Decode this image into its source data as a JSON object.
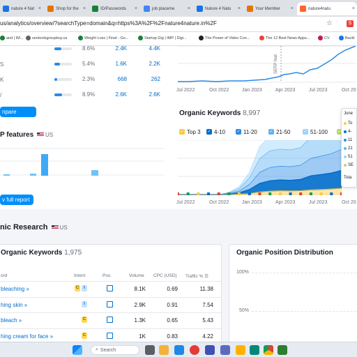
{
  "browser": {
    "tabs": [
      {
        "label": "nature 4 Nat",
        "color": "#1a73e8"
      },
      {
        "label": "Shop for the",
        "color": "#e37400"
      },
      {
        "label": "ID/Passwords",
        "color": "#188038"
      },
      {
        "label": "job placeme",
        "color": "#4285f4"
      },
      {
        "label": "Nature 4 Natu",
        "color": "#1a73e8"
      },
      {
        "label": "Your Member",
        "color": "#e37400"
      },
      {
        "label": "nature4natu",
        "color": "#ff642d"
      }
    ],
    "url": "us/analytics/overview/?searchType=domain&q=https%3A%2F%2Fnature4nature.in%2F",
    "bookmarks": [
      {
        "label": "and | IM...",
        "color": "#188038"
      },
      {
        "label": "seotoolsgroupbuy.us",
        "color": "#5f6368"
      },
      {
        "label": "Weight Loss | Final - Go...",
        "color": "#188038"
      },
      {
        "label": "Startup Gig | IMP | Digi...",
        "color": "#188038"
      },
      {
        "label": "The Power of Video Con...",
        "color": "#202124"
      },
      {
        "label": "The 12 Best News Apps...",
        "color": "#e8453c"
      },
      {
        "label": "CV",
        "color": "#c2185b"
      },
      {
        "label": "Backl",
        "color": "#1a73e8"
      }
    ]
  },
  "kw_rows": [
    {
      "a": "",
      "pct": "8.6%",
      "kw": "2.4K",
      "traffic": "4.4K",
      "fill": 0.4
    },
    {
      "a": "S",
      "pct": "5.4%",
      "kw": "1.6K",
      "traffic": "2.2K",
      "fill": 0.3
    },
    {
      "a": "K",
      "pct": "2.3%",
      "kw": "668",
      "traffic": "262",
      "fill": 0.15
    },
    {
      "a": "/",
      "pct": "8.9%",
      "kw": "2.6K",
      "traffic": "2.6K",
      "fill": 0.45
    }
  ],
  "compare_label": "npare",
  "serp": {
    "title": "P features",
    "country": "US",
    "icons": [
      "☆",
      "⊂⊃",
      "★",
      "▣",
      "◉",
      "◉",
      "⊡",
      "▷",
      "◉",
      "⌂",
      "🎓",
      "▤",
      "✕"
    ],
    "report_label": "v full report"
  },
  "traffic_chart": {
    "annotation": "SERP feat",
    "ticks": [
      "Jul 2022",
      "Oct 2022",
      "Jan 2023",
      "Apr 2023",
      "Jul 2023",
      "Oct 20"
    ]
  },
  "organic_kw": {
    "title": "Organic Keywords",
    "count": "8,997",
    "legend": [
      {
        "label": "Top 3",
        "color": "#ffc93c"
      },
      {
        "label": "4-10",
        "color": "#006dca"
      },
      {
        "label": "11-20",
        "color": "#2b8ae6"
      },
      {
        "label": "21-50",
        "color": "#5cb3f5"
      },
      {
        "label": "51-100",
        "color": "#9bd4fb"
      },
      {
        "label": "SE",
        "color": "#b6d96a"
      }
    ],
    "ticks": [
      "Jul 2022",
      "Oct 2022",
      "Jan 2023",
      "Apr 2023",
      "Jul 2023",
      "Oct 20"
    ]
  },
  "chart_data": {
    "type": "area",
    "title": "Organic Keywords",
    "x": [
      "Jun 2022",
      "Jul 2022",
      "Aug 2022",
      "Sep 2022",
      "Oct 2022",
      "Nov 2022",
      "Dec 2022",
      "Jan 2023",
      "Feb 2023",
      "Mar 2023",
      "Apr 2023",
      "May 2023",
      "Jun 2023",
      "Jul 2023",
      "Aug 2023",
      "Sep 2023",
      "Oct 2023"
    ],
    "series": [
      {
        "name": "Top 3",
        "values": [
          0,
          0,
          0,
          0,
          0,
          10,
          40,
          120,
          300,
          380,
          420,
          410,
          430,
          520,
          560,
          620,
          700
        ]
      },
      {
        "name": "4-10",
        "values": [
          0,
          0,
          0,
          0,
          0,
          40,
          150,
          420,
          900,
          1100,
          1150,
          1120,
          1200,
          1500,
          1600,
          1700,
          1900
        ]
      },
      {
        "name": "11-20",
        "values": [
          0,
          0,
          0,
          0,
          0,
          60,
          200,
          560,
          1200,
          1450,
          1500,
          1480,
          1550,
          1900,
          2000,
          2100,
          2300
        ]
      },
      {
        "name": "21-50",
        "values": [
          0,
          0,
          0,
          0,
          0,
          80,
          260,
          700,
          1500,
          1800,
          1850,
          1820,
          1900,
          2300,
          2450,
          2600,
          2900
        ]
      },
      {
        "name": "51-100",
        "values": [
          0,
          0,
          0,
          0,
          0,
          60,
          220,
          600,
          1300,
          1550,
          1600,
          1580,
          1650,
          2000,
          2150,
          2300,
          2600
        ]
      }
    ],
    "ylim": [
      0,
      10000
    ]
  },
  "tooltip": {
    "month": "June",
    "rows": [
      {
        "label": "To",
        "color": "#ffc93c"
      },
      {
        "label": "4-",
        "color": "#006dca"
      },
      {
        "label": "11",
        "color": "#2b8ae6"
      },
      {
        "label": "21",
        "color": "#5cb3f5"
      },
      {
        "label": "51",
        "color": "#9bd4fb"
      },
      {
        "label": "SE",
        "color": "#b6d96a"
      }
    ],
    "total": "Tota"
  },
  "organic_research": {
    "title": "nic Research",
    "country": "US",
    "table_title": "Organic Keywords",
    "table_count": "1,975",
    "headers": {
      "keyword": "ord",
      "intent": "Intent",
      "pos": "Pos.",
      "volume": "Volume",
      "cpc": "CPC (USD)",
      "traffic": "Traffic %"
    },
    "rows": [
      {
        "kw": "bleaching",
        "intents": [
          {
            "l": "C",
            "bg": "#ffd75a",
            "fg": "#7a5a00"
          },
          {
            "l": "I",
            "bg": "#c7e2ff",
            "fg": "#006dca"
          }
        ],
        "volume": "8.1K",
        "cpc": "0.69",
        "traffic": "11.38"
      },
      {
        "kw": "hing skin",
        "intents": [
          {
            "l": "I",
            "bg": "#c7e2ff",
            "fg": "#006dca"
          }
        ],
        "volume": "2.9K",
        "cpc": "0.91",
        "traffic": "7.54"
      },
      {
        "kw": "bleach",
        "intents": [
          {
            "l": "C",
            "bg": "#ffd75a",
            "fg": "#7a5a00"
          }
        ],
        "volume": "1.3K",
        "cpc": "0.65",
        "traffic": "5.43"
      },
      {
        "kw": "hing cream for face",
        "intents": [
          {
            "l": "C",
            "bg": "#ffd75a",
            "fg": "#7a5a00"
          }
        ],
        "volume": "1K",
        "cpc": "0.83",
        "traffic": "4.22"
      }
    ],
    "position_title": "Organic Position Distribution",
    "position_ticks": [
      "100%",
      "50%"
    ]
  },
  "taskbar": {
    "search_placeholder": "Search"
  }
}
